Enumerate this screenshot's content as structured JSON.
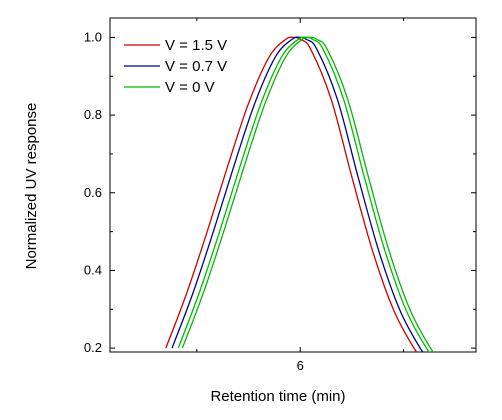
{
  "chart_data": {
    "type": "line",
    "title": "",
    "xlabel": "Retention time (min)",
    "ylabel": "Normalized UV response",
    "xlim": [
      5.08,
      6.85
    ],
    "ylim": [
      0.19,
      1.05
    ],
    "xticks": [
      6
    ],
    "xtick_labels": [
      "6"
    ],
    "yticks": [
      0.2,
      0.4,
      0.6,
      0.8,
      1.0
    ],
    "ytick_labels": [
      "0.2",
      "0.4",
      "0.6",
      "0.8",
      "1.0"
    ],
    "grid": false,
    "legend": "top-left",
    "series": [
      {
        "name": "V = 1.5 V",
        "color": "#cc0000",
        "x": [
          5.35,
          5.45,
          5.55,
          5.65,
          5.75,
          5.85,
          5.93,
          5.97,
          6.0,
          6.05,
          6.15,
          6.25,
          6.35,
          6.45,
          6.55,
          6.6
        ],
        "y": [
          0.2,
          0.34,
          0.5,
          0.67,
          0.83,
          0.95,
          0.995,
          1.0,
          0.995,
          0.97,
          0.84,
          0.64,
          0.45,
          0.3,
          0.2,
          0.17
        ]
      },
      {
        "name": "V = 0.7 V",
        "color": "#00008b",
        "x": [
          5.38,
          5.48,
          5.58,
          5.68,
          5.78,
          5.88,
          5.96,
          6.0,
          6.03,
          6.08,
          6.18,
          6.28,
          6.38,
          6.48,
          6.58,
          6.63
        ],
        "y": [
          0.2,
          0.34,
          0.5,
          0.67,
          0.83,
          0.95,
          0.995,
          1.0,
          0.995,
          0.97,
          0.84,
          0.64,
          0.45,
          0.3,
          0.2,
          0.17
        ]
      },
      {
        "name": "V = 0 V",
        "color": "#00bb00",
        "x": [
          5.41,
          5.51,
          5.61,
          5.71,
          5.81,
          5.91,
          5.99,
          6.03,
          6.06,
          6.11,
          6.21,
          6.31,
          6.41,
          6.51,
          6.61,
          6.66
        ],
        "y": [
          0.2,
          0.34,
          0.5,
          0.67,
          0.83,
          0.95,
          0.995,
          1.0,
          0.995,
          0.97,
          0.84,
          0.64,
          0.45,
          0.3,
          0.2,
          0.17
        ]
      },
      {
        "name": "",
        "color": "#00bb00",
        "x": [
          5.43,
          5.53,
          5.63,
          5.73,
          5.83,
          5.93,
          6.01,
          6.05,
          6.08,
          6.13,
          6.23,
          6.33,
          6.43,
          6.53,
          6.63,
          6.68
        ],
        "y": [
          0.2,
          0.34,
          0.5,
          0.67,
          0.83,
          0.95,
          0.995,
          1.0,
          0.995,
          0.97,
          0.84,
          0.64,
          0.45,
          0.3,
          0.2,
          0.17
        ]
      }
    ]
  }
}
